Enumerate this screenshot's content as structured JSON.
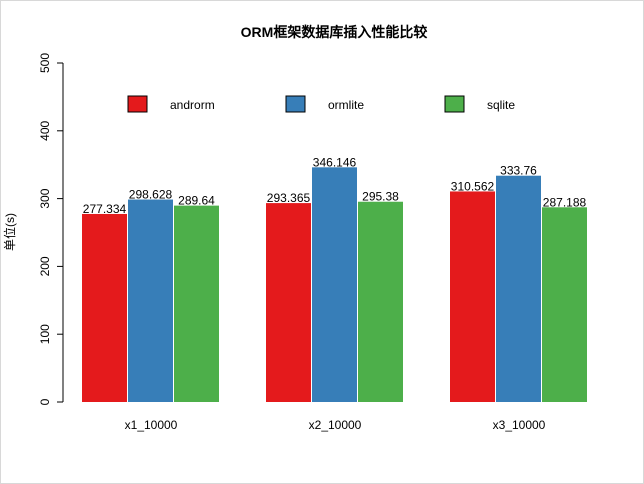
{
  "chart_data": {
    "type": "bar",
    "title": "ORM框架数据库插入性能比较",
    "xlabel": "",
    "ylabel": "单位(s)",
    "ylim": [
      0,
      500
    ],
    "yticks": [
      0,
      100,
      200,
      300,
      400,
      500
    ],
    "categories": [
      "x1_10000",
      "x2_10000",
      "x3_10000"
    ],
    "series": [
      {
        "name": "androrm",
        "color": "#e41a1c",
        "values": [
          277.334,
          293.365,
          310.562
        ],
        "labels": [
          "277.334",
          "293.365",
          "310.562"
        ]
      },
      {
        "name": "ormlite",
        "color": "#377eb8",
        "values": [
          298.628,
          346.146,
          333.76
        ],
        "labels": [
          "298.628",
          "346.146",
          "333.76"
        ]
      },
      {
        "name": "sqlite",
        "color": "#4daf4a",
        "values": [
          289.64,
          295.38,
          287.188
        ],
        "labels": [
          "289.64",
          "295.38",
          "287.188"
        ]
      }
    ],
    "legend": "top",
    "grid": false
  }
}
